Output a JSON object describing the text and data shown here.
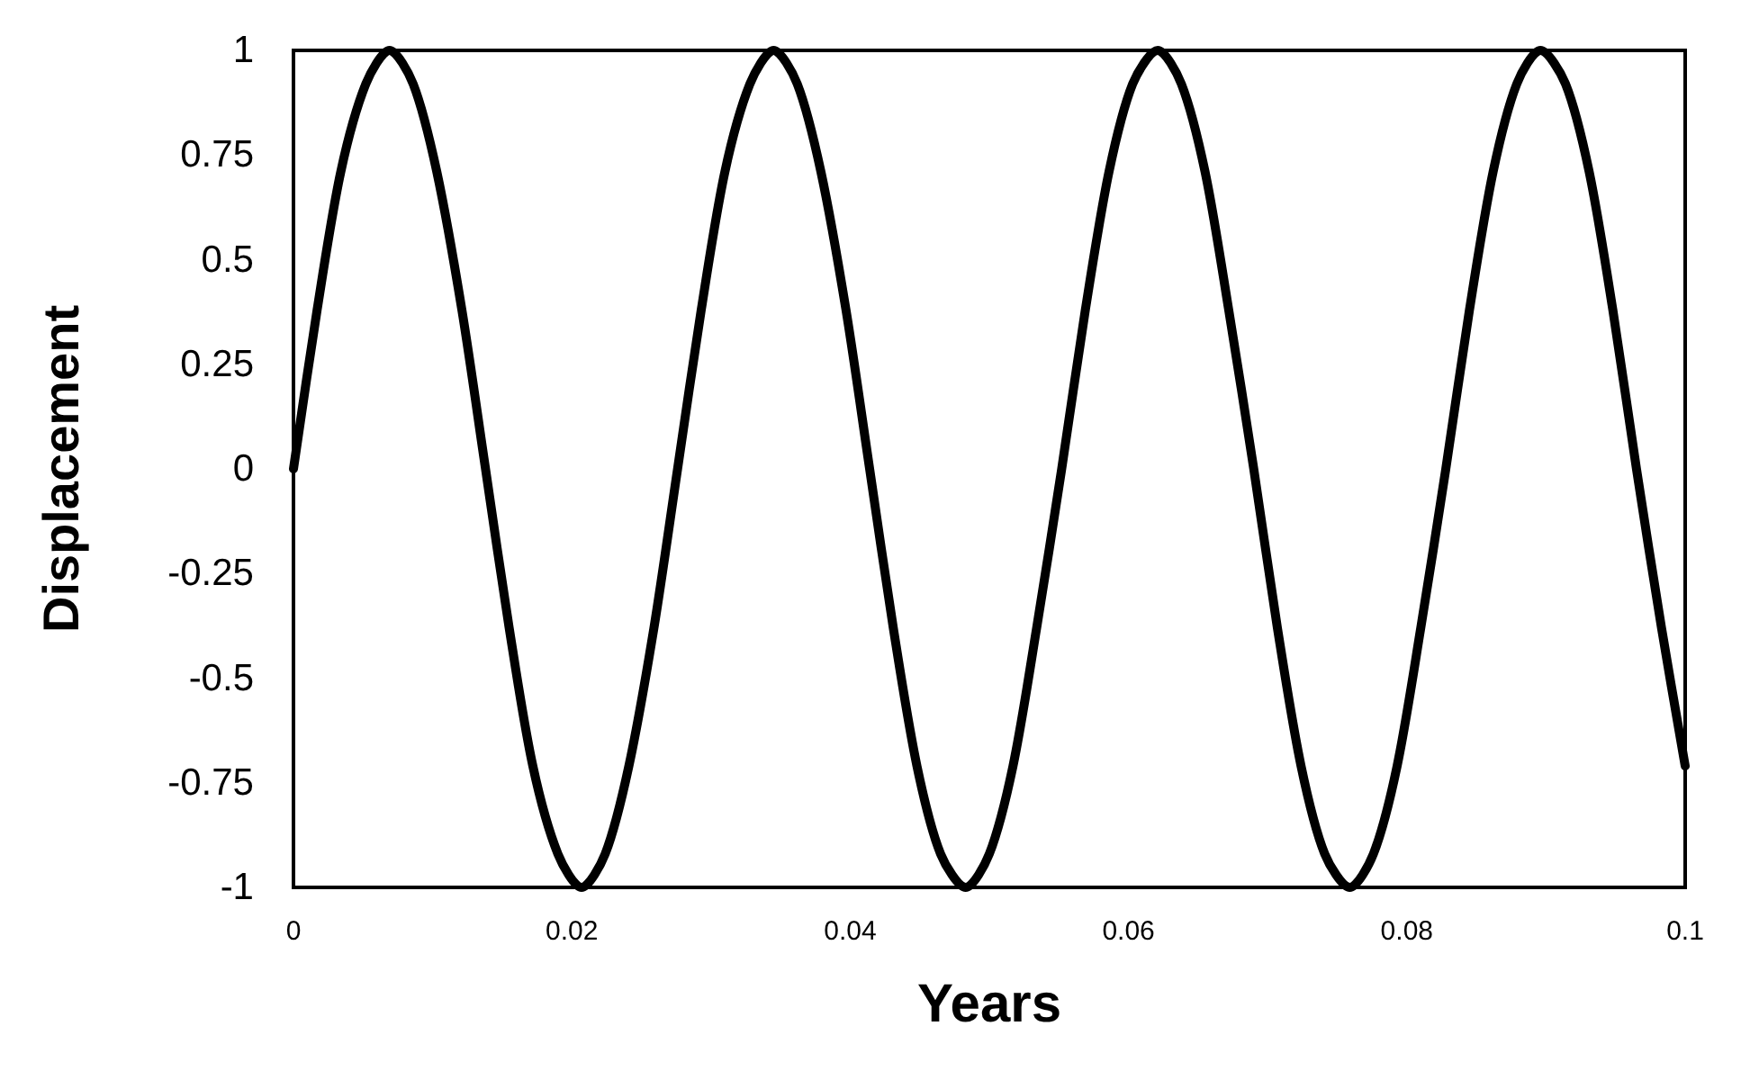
{
  "chart_data": {
    "type": "line",
    "xlabel": "Years",
    "ylabel": "Displacement",
    "x": [
      0,
      0.0017,
      0.0034,
      0.0052,
      0.0069,
      0.0086,
      0.0103,
      0.0121,
      0.0138,
      0.0155,
      0.0172,
      0.019,
      0.0207,
      0.0224,
      0.0241,
      0.0259,
      0.0276,
      0.0293,
      0.031,
      0.0328,
      0.0345,
      0.0362,
      0.0379,
      0.0397,
      0.0414,
      0.0431,
      0.0448,
      0.0465,
      0.0483,
      0.05,
      0.0517,
      0.0534,
      0.0552,
      0.0569,
      0.0586,
      0.0603,
      0.0621,
      0.0638,
      0.0655,
      0.0672,
      0.069,
      0.0707,
      0.0724,
      0.0741,
      0.0759,
      0.0776,
      0.0793,
      0.081,
      0.0828,
      0.0845,
      0.0862,
      0.0879,
      0.0896,
      0.0914,
      0.0931,
      0.0948,
      0.0965,
      0.0983,
      0.1
    ],
    "series": [
      {
        "color": "#000000",
        "values": [
          0,
          0.38,
          0.71,
          0.92,
          1,
          0.92,
          0.71,
          0.38,
          0,
          -0.38,
          -0.71,
          -0.92,
          -1,
          -0.92,
          -0.71,
          -0.38,
          0,
          0.38,
          0.71,
          0.92,
          1,
          0.92,
          0.71,
          0.38,
          0,
          -0.38,
          -0.71,
          -0.92,
          -1,
          -0.92,
          -0.71,
          -0.38,
          0,
          0.38,
          0.71,
          0.92,
          1,
          0.92,
          0.71,
          0.38,
          0,
          -0.38,
          -0.71,
          -0.92,
          -1,
          -0.92,
          -0.71,
          -0.38,
          0,
          0.38,
          0.71,
          0.92,
          1,
          0.92,
          0.71,
          0.38,
          0,
          -0.38,
          -0.71
        ]
      }
    ],
    "xlim": [
      0,
      0.1
    ],
    "xticks": [
      0,
      0.02,
      0.04,
      0.06,
      0.08,
      0.1
    ],
    "ylim": [
      -1,
      1
    ],
    "yticks": [
      -1,
      -0.75,
      -0.5,
      -0.25,
      0,
      0.25,
      0.5,
      0.75,
      1
    ],
    "grid": false,
    "marker": "none",
    "line_style": "solid"
  }
}
